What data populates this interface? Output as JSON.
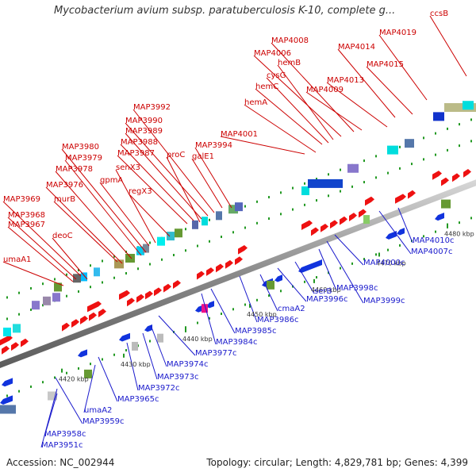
{
  "header": {
    "title": "Mycobacterium avium subsp. paratuberculosis K-10, complete g..."
  },
  "footer": {
    "accession": "Accession: NC_002944",
    "summary": "Topology: circular; Length: 4,829,781 bp; Genes: 4,399"
  },
  "colors": {
    "forward_label": "#cc0000",
    "reverse_label": "#1a1acc",
    "forward_arrow": "#ee1111",
    "reverse_arrow": "#1133dd",
    "backbone": "#888888",
    "tick": "#229922"
  },
  "ruler": {
    "unit": "kbp",
    "ticks": [
      "4420 kbp",
      "4430 kbp",
      "4440 kbp",
      "4450 kbp",
      "4460 kbp",
      "4470 kbp",
      "4480 kbp"
    ]
  },
  "forward_genes": [
    "umaA1",
    "deoC",
    "MAP3967",
    "MAP3968",
    "MAP3969",
    "murB",
    "MAP3976",
    "MAP3978",
    "MAP3979",
    "MAP3980",
    "gpmA",
    "senX3",
    "regX3",
    "MAP3987",
    "MAP3988",
    "MAP3989",
    "MAP3990",
    "MAP3992",
    "proC",
    "galE1",
    "MAP3994",
    "MAP4001",
    "hemA",
    "hemC",
    "cysG",
    "hemB",
    "MAP4006",
    "MAP4008",
    "MAP4009",
    "MAP4013",
    "MAP4014",
    "MAP4015",
    "MAP4019",
    "ccsB"
  ],
  "reverse_genes": [
    "MAP3951c",
    "MAP3958c",
    "MAP3959c",
    "umaA2",
    "MAP3965c",
    "MAP3972c",
    "MAP3973c",
    "MAP3974c",
    "MAP3977c",
    "MAP3984c",
    "MAP3985c",
    "MAP3986c",
    "cmaA2",
    "MAP3996c",
    "serB",
    "MAP3998c",
    "MAP3999c",
    "MAP4000c",
    "MAP4007c",
    "MAP4010c"
  ]
}
